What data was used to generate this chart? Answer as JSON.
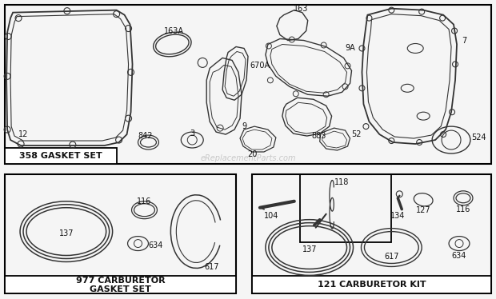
{
  "bg_color": "#f5f5f5",
  "border_color": "#111111",
  "gasket_set_label": "358 GASKET SET",
  "carb_gasket_label": "977 CARBURETOR\nGASKET SET",
  "carb_kit_label": "121 CARBURETOR KIT",
  "lc": "#333333",
  "tc": "#111111",
  "fs": 7.0,
  "fs_label": 8.0,
  "fw_label": "bold"
}
